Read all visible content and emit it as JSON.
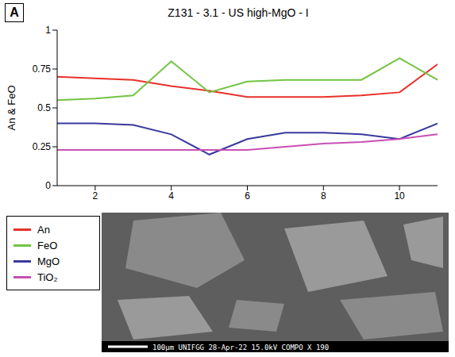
{
  "panel": "A",
  "chart_data": {
    "type": "line",
    "title": "Z131 - 3.1 - US high-MgO - I",
    "y_label": "An & FeO",
    "x": [
      1,
      2,
      3,
      4,
      5,
      6,
      7,
      8,
      9,
      10,
      11
    ],
    "series": [
      {
        "name": "An",
        "color": "#e8302a",
        "values": [
          0.7,
          0.69,
          0.68,
          0.64,
          0.61,
          0.57,
          0.57,
          0.57,
          0.58,
          0.6,
          0.78
        ]
      },
      {
        "name": "FeO",
        "color": "#72c443",
        "values": [
          0.55,
          0.56,
          0.58,
          0.8,
          0.6,
          0.67,
          0.68,
          0.68,
          0.68,
          0.82,
          0.68
        ]
      },
      {
        "name": "MgO",
        "color": "#3a3a9e",
        "values": [
          0.4,
          0.4,
          0.39,
          0.33,
          0.2,
          0.3,
          0.34,
          0.34,
          0.33,
          0.3,
          0.4
        ]
      },
      {
        "name": "TiO₂",
        "color": "#c94fb4",
        "values": [
          0.23,
          0.23,
          0.23,
          0.23,
          0.23,
          0.23,
          0.25,
          0.27,
          0.28,
          0.3,
          0.33
        ]
      }
    ],
    "xlim": [
      1,
      11
    ],
    "xticks": [
      2,
      4,
      6,
      8,
      10
    ],
    "ylim": [
      0,
      1
    ],
    "yticks": [
      0,
      0.25,
      0.5,
      0.75,
      1
    ],
    "legend": "bottom left",
    "grid": false
  },
  "image": {
    "footer": [
      "100µm",
      "UNIFGG",
      "28-Apr-22",
      "15.0kV COMPO",
      "X 190"
    ]
  }
}
